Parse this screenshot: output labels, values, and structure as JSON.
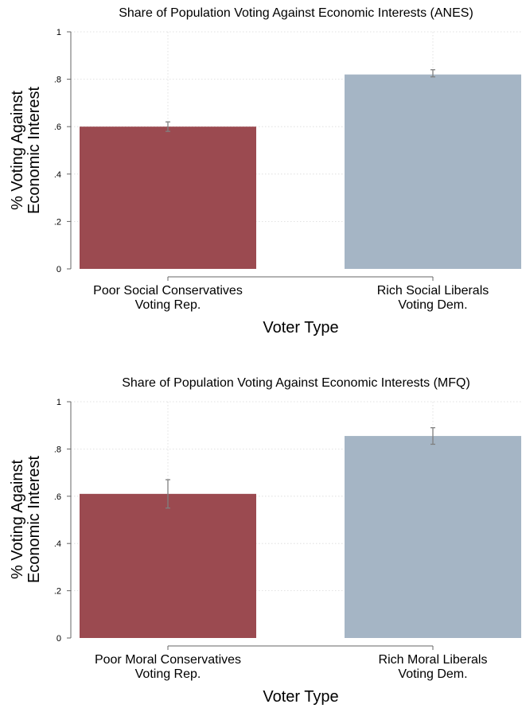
{
  "chart_data": [
    {
      "type": "bar",
      "title": "Share of Population Voting Against Economic Interests (ANES)",
      "ylabel_lines": [
        "% Voting Against",
        "Economic Interest"
      ],
      "xlabel": "Voter Type",
      "categories": [
        [
          "Poor Social Conservatives",
          "Voting Rep."
        ],
        [
          "Rich Social Liberals",
          "Voting Dem."
        ]
      ],
      "values": [
        0.6,
        0.82
      ],
      "ci_low": [
        0.58,
        0.81
      ],
      "ci_high": [
        0.62,
        0.84
      ],
      "ylim": [
        0,
        1
      ],
      "yticks": [
        0,
        0.2,
        0.4,
        0.6,
        0.8,
        1
      ],
      "ytick_labels": [
        "0",
        ".2",
        ".4",
        ".6",
        ".8",
        "1"
      ],
      "colors": [
        "#9b4a50",
        "#a5b5c5"
      ],
      "grid": true
    },
    {
      "type": "bar",
      "title": "Share of Population Voting Against Economic Interests (MFQ)",
      "ylabel_lines": [
        "% Voting Against",
        "Economic Interest"
      ],
      "xlabel": "Voter Type",
      "categories": [
        [
          "Poor Moral Conservatives",
          "Voting Rep."
        ],
        [
          "Rich Moral Liberals",
          "Voting Dem."
        ]
      ],
      "values": [
        0.61,
        0.855
      ],
      "ci_low": [
        0.55,
        0.82
      ],
      "ci_high": [
        0.67,
        0.89
      ],
      "ylim": [
        0,
        1
      ],
      "yticks": [
        0,
        0.2,
        0.4,
        0.6,
        0.8,
        1
      ],
      "ytick_labels": [
        "0",
        ".2",
        ".4",
        ".6",
        ".8",
        "1"
      ],
      "colors": [
        "#9b4a50",
        "#a5b5c5"
      ],
      "grid": true
    }
  ]
}
